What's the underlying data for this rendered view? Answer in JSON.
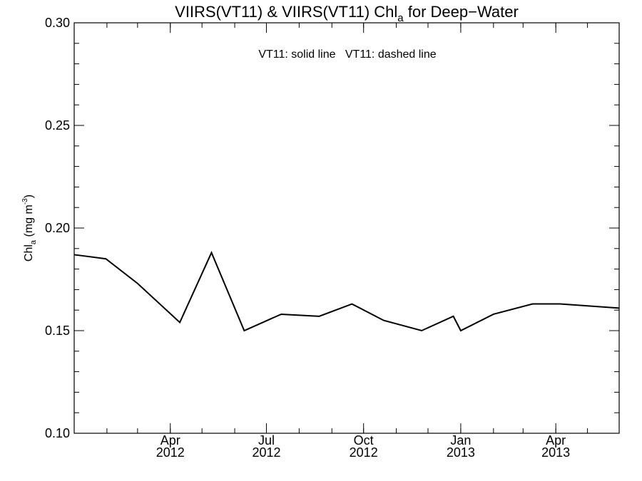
{
  "chart_data": {
    "type": "line",
    "title": {
      "prefix": "VIIRS(VT11) & VIIRS(VT11)  Chl",
      "subscript": "a",
      "suffix": " for Deep−Water"
    },
    "annotation": "VT11: solid line   VT11: dashed line",
    "ylabel": {
      "main": "Chl",
      "subscript": "a",
      "unit_open": " (mg m",
      "superscript": "-3",
      "unit_close": ")"
    },
    "x_ticks": [
      {
        "date": "2012-04-01",
        "month": "Apr",
        "year": "2012"
      },
      {
        "date": "2012-07-01",
        "month": "Jul",
        "year": "2012"
      },
      {
        "date": "2012-10-01",
        "month": "Oct",
        "year": "2012"
      },
      {
        "date": "2013-01-01",
        "month": "Jan",
        "year": "2013"
      },
      {
        "date": "2013-04-01",
        "month": "Apr",
        "year": "2013"
      }
    ],
    "x_range": [
      "2012-01-01",
      "2013-05-31"
    ],
    "ylim": [
      0.1,
      0.3
    ],
    "y_ticks": [
      "0.10",
      "0.15",
      "0.20",
      "0.25",
      "0.30"
    ],
    "series": [
      {
        "line_style": "solid",
        "color": "#000000",
        "points": [
          {
            "x": "2012-01-01",
            "y": 0.187
          },
          {
            "x": "2012-01-31",
            "y": 0.185
          },
          {
            "x": "2012-03-01",
            "y": 0.173
          },
          {
            "x": "2012-04-10",
            "y": 0.154
          },
          {
            "x": "2012-05-10",
            "y": 0.188
          },
          {
            "x": "2012-06-10",
            "y": 0.15
          },
          {
            "x": "2012-07-15",
            "y": 0.158
          },
          {
            "x": "2012-08-20",
            "y": 0.157
          },
          {
            "x": "2012-09-20",
            "y": 0.163
          },
          {
            "x": "2012-10-20",
            "y": 0.155
          },
          {
            "x": "2012-11-25",
            "y": 0.15
          },
          {
            "x": "2012-12-25",
            "y": 0.157
          },
          {
            "x": "2013-01-01",
            "y": 0.15
          },
          {
            "x": "2013-02-01",
            "y": 0.158
          },
          {
            "x": "2013-03-10",
            "y": 0.163
          },
          {
            "x": "2013-04-05",
            "y": 0.163
          },
          {
            "x": "2013-05-31",
            "y": 0.161
          }
        ]
      }
    ]
  }
}
